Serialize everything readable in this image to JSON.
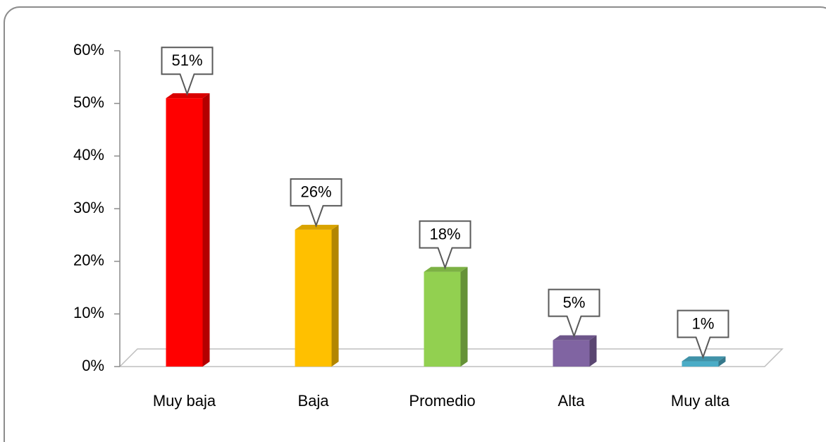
{
  "chart_data": {
    "type": "bar",
    "categories": [
      "Muy baja",
      "Baja",
      "Promedio",
      "Alta",
      "Muy alta"
    ],
    "values": [
      51,
      26,
      18,
      5,
      1
    ],
    "value_labels": [
      "51%",
      "26%",
      "18%",
      "5%",
      "1%"
    ],
    "colors": [
      "#ff0000",
      "#ffc000",
      "#92d050",
      "#8064a2",
      "#4bacc6"
    ],
    "ylim": [
      0,
      60
    ],
    "yticks": [
      {
        "value": 0,
        "label": "0%"
      },
      {
        "value": 10,
        "label": "10%"
      },
      {
        "value": 20,
        "label": "20%"
      },
      {
        "value": 30,
        "label": "30%"
      },
      {
        "value": 40,
        "label": "40%"
      },
      {
        "value": 50,
        "label": "50%"
      },
      {
        "value": 60,
        "label": "60%"
      }
    ],
    "grid": false
  }
}
